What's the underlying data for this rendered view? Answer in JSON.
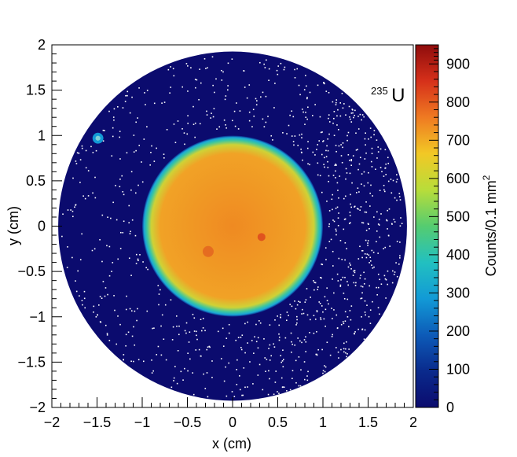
{
  "chart_data": {
    "type": "heatmap",
    "title": "",
    "xlabel": "x (cm)",
    "ylabel": "y (cm)",
    "xlim": [
      -2,
      2
    ],
    "ylim": [
      -2,
      2
    ],
    "x_ticks": [
      -2,
      -1.5,
      -1,
      -0.5,
      0,
      0.5,
      1,
      1.5,
      2
    ],
    "y_ticks": [
      -2,
      -1.5,
      -1,
      -0.5,
      0,
      0.5,
      1,
      1.5,
      2
    ],
    "x_tick_labels": [
      "−2",
      "−1.5",
      "−1",
      "−0.5",
      "0",
      "0.5",
      "1",
      "1.5",
      "2"
    ],
    "y_tick_labels": [
      "−2",
      "−1.5",
      "−1",
      "−0.5",
      "0",
      "0.5",
      "1",
      "1.5",
      "2"
    ],
    "annotation": {
      "superscript": "235",
      "text": "U"
    },
    "colorbar": {
      "label_base": "Counts/0.1 mm",
      "label_exponent": "2",
      "range": [
        0,
        950
      ],
      "ticks": [
        0,
        100,
        200,
        300,
        400,
        500,
        600,
        700,
        800,
        900
      ],
      "tick_labels": [
        "0",
        "100",
        "200",
        "300",
        "400",
        "500",
        "600",
        "700",
        "800",
        "900"
      ],
      "palette": [
        "#0b0b6e",
        "#0a2a8c",
        "#0d5bb8",
        "#129ad6",
        "#22c0c0",
        "#55cc70",
        "#b8dd3a",
        "#f2c825",
        "#ef7a22",
        "#d6301a",
        "#8e0c0c"
      ]
    },
    "regions": [
      {
        "name": "detector-disk",
        "center": [
          0,
          0
        ],
        "radius_cm": 1.93,
        "counts": 25
      },
      {
        "name": "target-spot",
        "center": [
          0,
          0
        ],
        "radius_cm": 1.0,
        "counts": 690
      },
      {
        "name": "calibration-dot",
        "center": [
          -1.49,
          0.97
        ],
        "radius_cm": 0.06,
        "counts": 330
      }
    ]
  }
}
